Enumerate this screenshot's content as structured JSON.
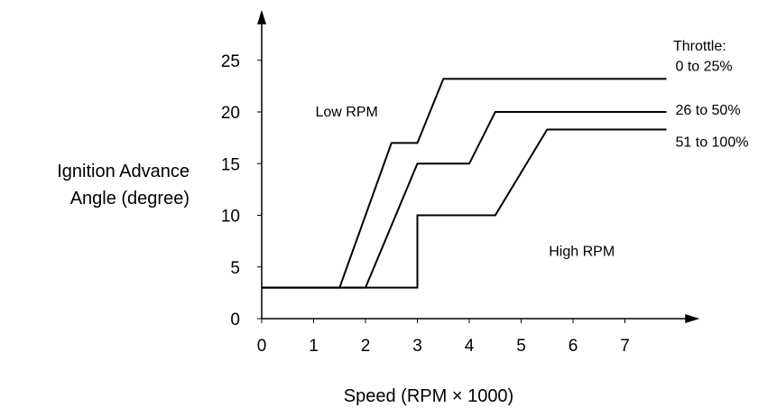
{
  "chart_data": {
    "type": "line",
    "xlabel": "Speed (RPM × 1000)",
    "ylabel_lines": [
      "Ignition Advance",
      "Angle (degree)"
    ],
    "xlim": [
      0,
      8.3
    ],
    "ylim": [
      0,
      29
    ],
    "xticks": [
      0,
      1,
      2,
      3,
      4,
      5,
      6,
      7
    ],
    "yticks": [
      0,
      5,
      10,
      15,
      20,
      25
    ],
    "grid": false,
    "legend_title": "Throttle:",
    "legend_placement": "right, at line ends",
    "annotations": [
      {
        "text": "Low RPM",
        "x": 1.0,
        "y": 20
      },
      {
        "text": "High RPM",
        "x": 5.5,
        "y": 6.5
      }
    ],
    "series": [
      {
        "name": "0 to 25%",
        "x": [
          0,
          1.5,
          2.5,
          3.0,
          3.5,
          7.8
        ],
        "y": [
          3,
          3,
          17,
          17,
          23.2,
          23.2
        ]
      },
      {
        "name": "26 to 50%",
        "x": [
          0,
          2.0,
          3.0,
          4.0,
          4.5,
          7.8
        ],
        "y": [
          3,
          3,
          15,
          15,
          20,
          20
        ]
      },
      {
        "name": "51 to 100%",
        "x": [
          0,
          3.0,
          3.0,
          4.5,
          5.5,
          7.8
        ],
        "y": [
          3,
          3,
          10,
          10,
          18.3,
          18.3
        ]
      }
    ]
  }
}
